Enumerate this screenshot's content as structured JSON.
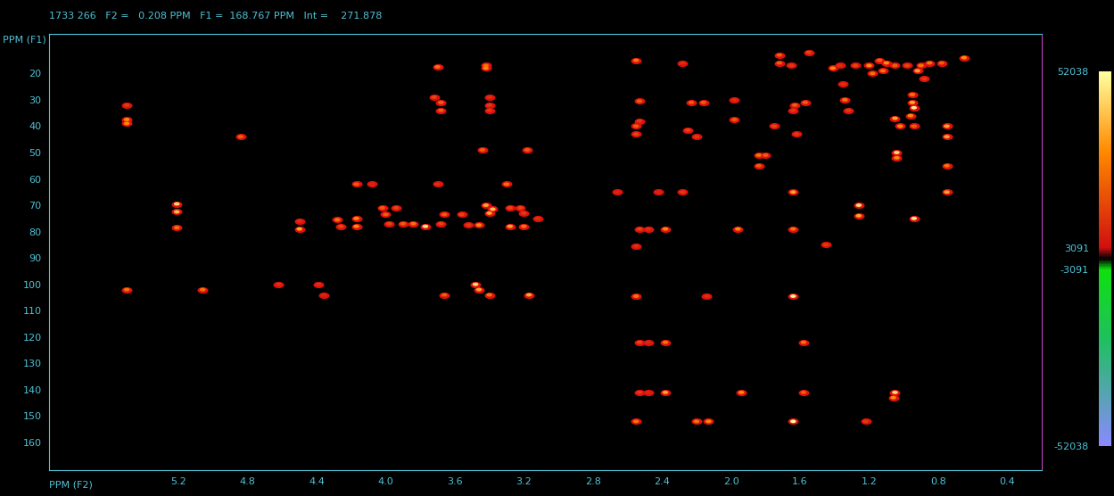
{
  "chart_data": {
    "type": "scatter",
    "header": "1733 266   F2 =   0.208 PPM   F1 =  168.767 PPM   Int =    271.878",
    "xlabel": "PPM (F2)",
    "ylabel": "PPM (F1)",
    "xlim": [
      5.95,
      0.2
    ],
    "ylim": [
      170.5,
      5
    ],
    "xticks": [
      5.2,
      4.8,
      4.4,
      4.0,
      3.6,
      3.2,
      2.8,
      2.4,
      2.0,
      1.6,
      1.2,
      0.8,
      0.4
    ],
    "yticks": [
      20,
      30,
      40,
      50,
      60,
      70,
      80,
      90,
      100,
      110,
      120,
      130,
      140,
      150,
      160
    ],
    "colorbar_range": [
      -52038,
      52038
    ],
    "colorbar_ticks": [
      -52038,
      -3091,
      3091,
      52038
    ],
    "peaks": [
      [
        5.5,
        32,
        12000
      ],
      [
        5.5,
        37.5,
        30000
      ],
      [
        5.5,
        39,
        30000
      ],
      [
        5.5,
        102,
        25000
      ],
      [
        5.21,
        69.5,
        45000
      ],
      [
        5.21,
        72.5,
        40000
      ],
      [
        5.21,
        78.5,
        25000
      ],
      [
        5.06,
        102,
        25000
      ],
      [
        4.84,
        44,
        20000
      ],
      [
        4.62,
        100,
        10000
      ],
      [
        4.5,
        79,
        35000
      ],
      [
        4.5,
        76,
        10000
      ],
      [
        4.39,
        100,
        10000
      ],
      [
        4.36,
        104,
        8000
      ],
      [
        4.28,
        75.5,
        25000
      ],
      [
        4.26,
        78,
        15000
      ],
      [
        4.17,
        75,
        30000
      ],
      [
        4.17,
        78,
        30000
      ],
      [
        4.17,
        62,
        20000
      ],
      [
        4.08,
        62,
        8000
      ],
      [
        4.02,
        71,
        20000
      ],
      [
        4.0,
        73.5,
        20000
      ],
      [
        3.98,
        77,
        15000
      ],
      [
        3.94,
        71,
        15000
      ],
      [
        3.9,
        77,
        20000
      ],
      [
        3.84,
        77,
        25000
      ],
      [
        3.77,
        78,
        48000
      ],
      [
        3.72,
        29,
        15000
      ],
      [
        3.7,
        17.5,
        25000
      ],
      [
        3.68,
        31,
        20000
      ],
      [
        3.68,
        34,
        20000
      ],
      [
        3.7,
        62,
        10000
      ],
      [
        3.68,
        77,
        15000
      ],
      [
        3.66,
        73.5,
        20000
      ],
      [
        3.66,
        104,
        20000
      ],
      [
        3.56,
        73.5,
        15000
      ],
      [
        3.52,
        77.5,
        12000
      ],
      [
        3.48,
        100,
        45000
      ],
      [
        3.46,
        102,
        35000
      ],
      [
        3.46,
        77.5,
        30000
      ],
      [
        3.44,
        49,
        20000
      ],
      [
        3.42,
        70,
        35000
      ],
      [
        3.42,
        18,
        30000
      ],
      [
        3.42,
        17,
        25000
      ],
      [
        3.4,
        29,
        10000
      ],
      [
        3.4,
        32,
        12000
      ],
      [
        3.4,
        34,
        12000
      ],
      [
        3.4,
        73,
        35000
      ],
      [
        3.38,
        71.5,
        40000
      ],
      [
        3.4,
        104,
        25000
      ],
      [
        3.3,
        62,
        25000
      ],
      [
        3.28,
        71,
        15000
      ],
      [
        3.28,
        78,
        35000
      ],
      [
        3.22,
        71,
        15000
      ],
      [
        3.2,
        78,
        25000
      ],
      [
        3.18,
        49,
        20000
      ],
      [
        3.17,
        104,
        35000
      ],
      [
        3.2,
        73,
        12000
      ],
      [
        3.12,
        75,
        10000
      ],
      [
        2.66,
        65,
        8000
      ],
      [
        2.55,
        15,
        25000
      ],
      [
        2.55,
        40,
        20000
      ],
      [
        2.53,
        30.5,
        20000
      ],
      [
        2.53,
        38,
        12000
      ],
      [
        2.55,
        43,
        15000
      ],
      [
        2.53,
        79,
        15000
      ],
      [
        2.55,
        85.5,
        10000
      ],
      [
        2.55,
        104.5,
        25000
      ],
      [
        2.53,
        122,
        15000
      ],
      [
        2.53,
        141,
        12000
      ],
      [
        2.55,
        152,
        25000
      ],
      [
        2.48,
        122,
        8000
      ],
      [
        2.48,
        141,
        8000
      ],
      [
        2.48,
        79,
        10000
      ],
      [
        2.42,
        65,
        8000
      ],
      [
        2.38,
        79,
        30000
      ],
      [
        2.38,
        122,
        25000
      ],
      [
        2.38,
        141,
        35000
      ],
      [
        2.28,
        16,
        10000
      ],
      [
        2.28,
        65,
        12000
      ],
      [
        2.25,
        41.5,
        15000
      ],
      [
        2.23,
        31,
        20000
      ],
      [
        2.2,
        44,
        12000
      ],
      [
        2.2,
        152,
        25000
      ],
      [
        2.16,
        31,
        20000
      ],
      [
        2.14,
        104.5,
        10000
      ],
      [
        2.13,
        152,
        30000
      ],
      [
        1.98,
        30,
        10000
      ],
      [
        1.98,
        37.5,
        20000
      ],
      [
        1.96,
        79,
        30000
      ],
      [
        1.94,
        141,
        30000
      ],
      [
        1.84,
        51,
        25000
      ],
      [
        1.84,
        55,
        20000
      ],
      [
        1.8,
        51,
        20000
      ],
      [
        1.75,
        40,
        15000
      ],
      [
        1.72,
        13,
        20000
      ],
      [
        1.72,
        16,
        20000
      ],
      [
        1.65,
        17,
        12000
      ],
      [
        1.63,
        32,
        20000
      ],
      [
        1.64,
        34,
        12000
      ],
      [
        1.62,
        43,
        12000
      ],
      [
        1.64,
        65,
        35000
      ],
      [
        1.64,
        79,
        25000
      ],
      [
        1.64,
        104.5,
        50000
      ],
      [
        1.64,
        152,
        52000
      ],
      [
        1.58,
        122,
        25000
      ],
      [
        1.58,
        141,
        20000
      ],
      [
        1.57,
        31,
        20000
      ],
      [
        1.55,
        12,
        15000
      ],
      [
        1.45,
        85,
        12000
      ],
      [
        1.41,
        18,
        30000
      ],
      [
        1.37,
        17,
        10000
      ],
      [
        1.34,
        30,
        25000
      ],
      [
        1.32,
        34,
        12000
      ],
      [
        1.35,
        24,
        10000
      ],
      [
        1.28,
        17,
        15000
      ],
      [
        1.26,
        70,
        45000
      ],
      [
        1.26,
        74,
        35000
      ],
      [
        1.22,
        152,
        12000
      ],
      [
        1.18,
        20,
        25000
      ],
      [
        1.2,
        17,
        30000
      ],
      [
        1.14,
        15,
        20000
      ],
      [
        1.12,
        19,
        25000
      ],
      [
        1.1,
        16,
        30000
      ],
      [
        1.05,
        17,
        20000
      ],
      [
        1.05,
        37,
        35000
      ],
      [
        1.04,
        50,
        45000
      ],
      [
        1.04,
        52,
        30000
      ],
      [
        1.02,
        40,
        30000
      ],
      [
        1.05,
        141,
        45000
      ],
      [
        1.06,
        143,
        30000
      ],
      [
        0.98,
        17,
        15000
      ],
      [
        0.95,
        28,
        25000
      ],
      [
        0.95,
        31,
        35000
      ],
      [
        0.94,
        33,
        48000
      ],
      [
        0.96,
        36,
        30000
      ],
      [
        0.94,
        40,
        20000
      ],
      [
        0.94,
        75,
        48000
      ],
      [
        0.92,
        19,
        35000
      ],
      [
        0.9,
        17,
        25000
      ],
      [
        0.88,
        22,
        12000
      ],
      [
        0.85,
        16,
        25000
      ],
      [
        0.78,
        16,
        20000
      ],
      [
        0.75,
        40,
        35000
      ],
      [
        0.75,
        44,
        35000
      ],
      [
        0.75,
        55,
        25000
      ],
      [
        0.75,
        65,
        35000
      ],
      [
        0.65,
        14,
        30000
      ]
    ]
  }
}
